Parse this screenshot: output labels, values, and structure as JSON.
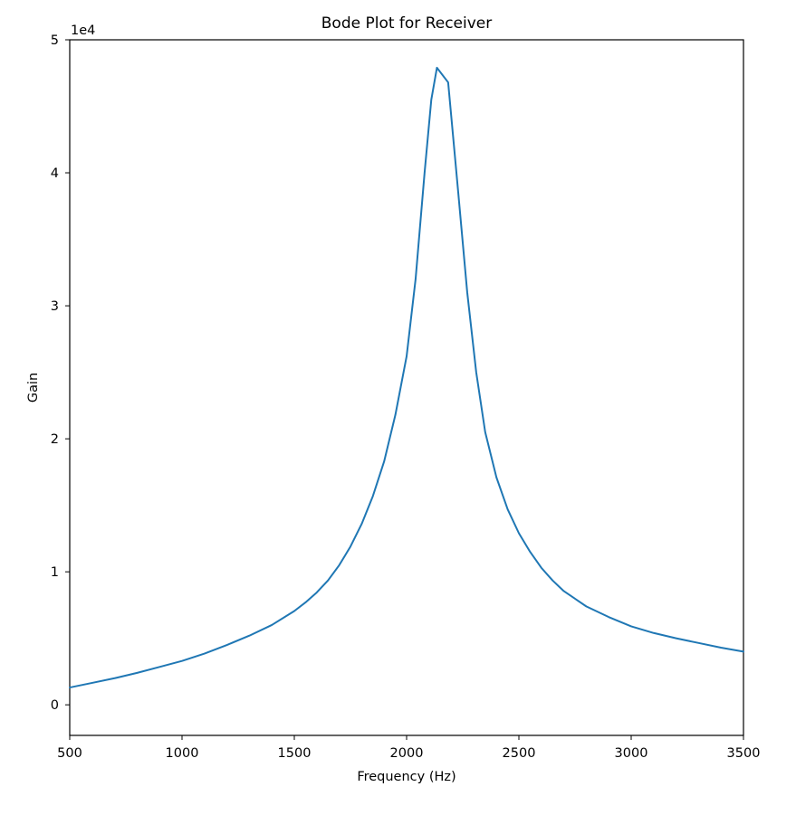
{
  "chart_data": {
    "type": "line",
    "title": "Bode Plot for Receiver",
    "xlabel": "Frequency (Hz)",
    "ylabel": "Gain",
    "y_offset_label": "1e4",
    "xlim": [
      500,
      3500
    ],
    "ylim": [
      -2300,
      50000
    ],
    "x_ticks": [
      500,
      1000,
      1500,
      2000,
      2500,
      3000,
      3500
    ],
    "y_ticks": [
      0,
      10000,
      20000,
      30000,
      40000,
      50000
    ],
    "y_tick_labels": [
      "0",
      "1",
      "2",
      "3",
      "4",
      "5"
    ],
    "grid": false,
    "line_color": "#1f77b4",
    "series": [
      {
        "x": [
          500,
          600,
          700,
          800,
          900,
          1000,
          1100,
          1200,
          1300,
          1400,
          1500,
          1550,
          1600,
          1650,
          1700,
          1750,
          1800,
          1850,
          1900,
          1950,
          2000,
          2040,
          2080,
          2110,
          2135,
          2185,
          2230,
          2270,
          2310,
          2350,
          2400,
          2450,
          2500,
          2550,
          2600,
          2650,
          2700,
          2800,
          2900,
          3000,
          3100,
          3200,
          3300,
          3400,
          3500
        ],
        "y": [
          1300,
          1650,
          2000,
          2400,
          2850,
          3300,
          3850,
          4500,
          5200,
          6000,
          7050,
          7700,
          8450,
          9350,
          10500,
          11900,
          13600,
          15700,
          18300,
          21800,
          26200,
          32000,
          40000,
          45500,
          47900,
          46800,
          38500,
          31000,
          25000,
          20500,
          17100,
          14700,
          12900,
          11500,
          10300,
          9350,
          8550,
          7400,
          6600,
          5900,
          5400,
          5000,
          4650,
          4300,
          4000
        ]
      }
    ]
  }
}
